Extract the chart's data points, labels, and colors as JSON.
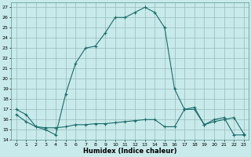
{
  "xlabel": "Humidex (Indice chaleur)",
  "bg_color": "#c8eaea",
  "grid_color": "#9ababa",
  "line_color": "#1a6b6b",
  "line1_x": [
    0,
    1,
    2,
    3,
    4,
    5,
    6,
    7,
    8,
    9,
    10,
    11,
    12,
    13,
    14,
    15,
    16,
    17,
    18,
    19,
    20,
    21,
    22,
    23
  ],
  "line1_y": [
    17.0,
    16.5,
    15.3,
    15.0,
    14.5,
    18.5,
    21.5,
    23.0,
    23.2,
    24.5,
    26.0,
    26.0,
    26.5,
    27.0,
    26.5,
    25.0,
    19.0,
    17.0,
    17.0,
    15.5,
    16.0,
    16.2,
    14.5,
    14.5
  ],
  "line2_x": [
    0,
    1,
    2,
    3,
    4,
    5,
    6,
    7,
    8,
    9,
    10,
    11,
    12,
    13,
    14,
    15,
    16,
    17,
    18,
    19,
    20,
    21,
    22,
    23
  ],
  "line2_y": [
    16.5,
    15.8,
    15.3,
    15.2,
    15.2,
    15.3,
    15.5,
    15.5,
    15.6,
    15.6,
    15.7,
    15.8,
    15.9,
    16.0,
    16.0,
    15.3,
    15.3,
    17.0,
    17.2,
    15.5,
    15.8,
    16.0,
    16.2,
    14.6
  ],
  "xlim": [
    -0.5,
    23.5
  ],
  "ylim": [
    14,
    27.5
  ],
  "yticks": [
    14,
    15,
    16,
    17,
    18,
    19,
    20,
    21,
    22,
    23,
    24,
    25,
    26,
    27
  ],
  "xticks": [
    0,
    1,
    2,
    3,
    4,
    5,
    6,
    7,
    8,
    9,
    10,
    11,
    12,
    13,
    14,
    15,
    16,
    17,
    18,
    19,
    20,
    21,
    22,
    23
  ],
  "xtick_labels": [
    "0",
    "1",
    "2",
    "3",
    "4",
    "5",
    "6",
    "7",
    "8",
    "9",
    "10",
    "11",
    "12",
    "13",
    "14",
    "15",
    "16",
    "17",
    "18",
    "19",
    "20",
    "21",
    "22",
    "23"
  ]
}
